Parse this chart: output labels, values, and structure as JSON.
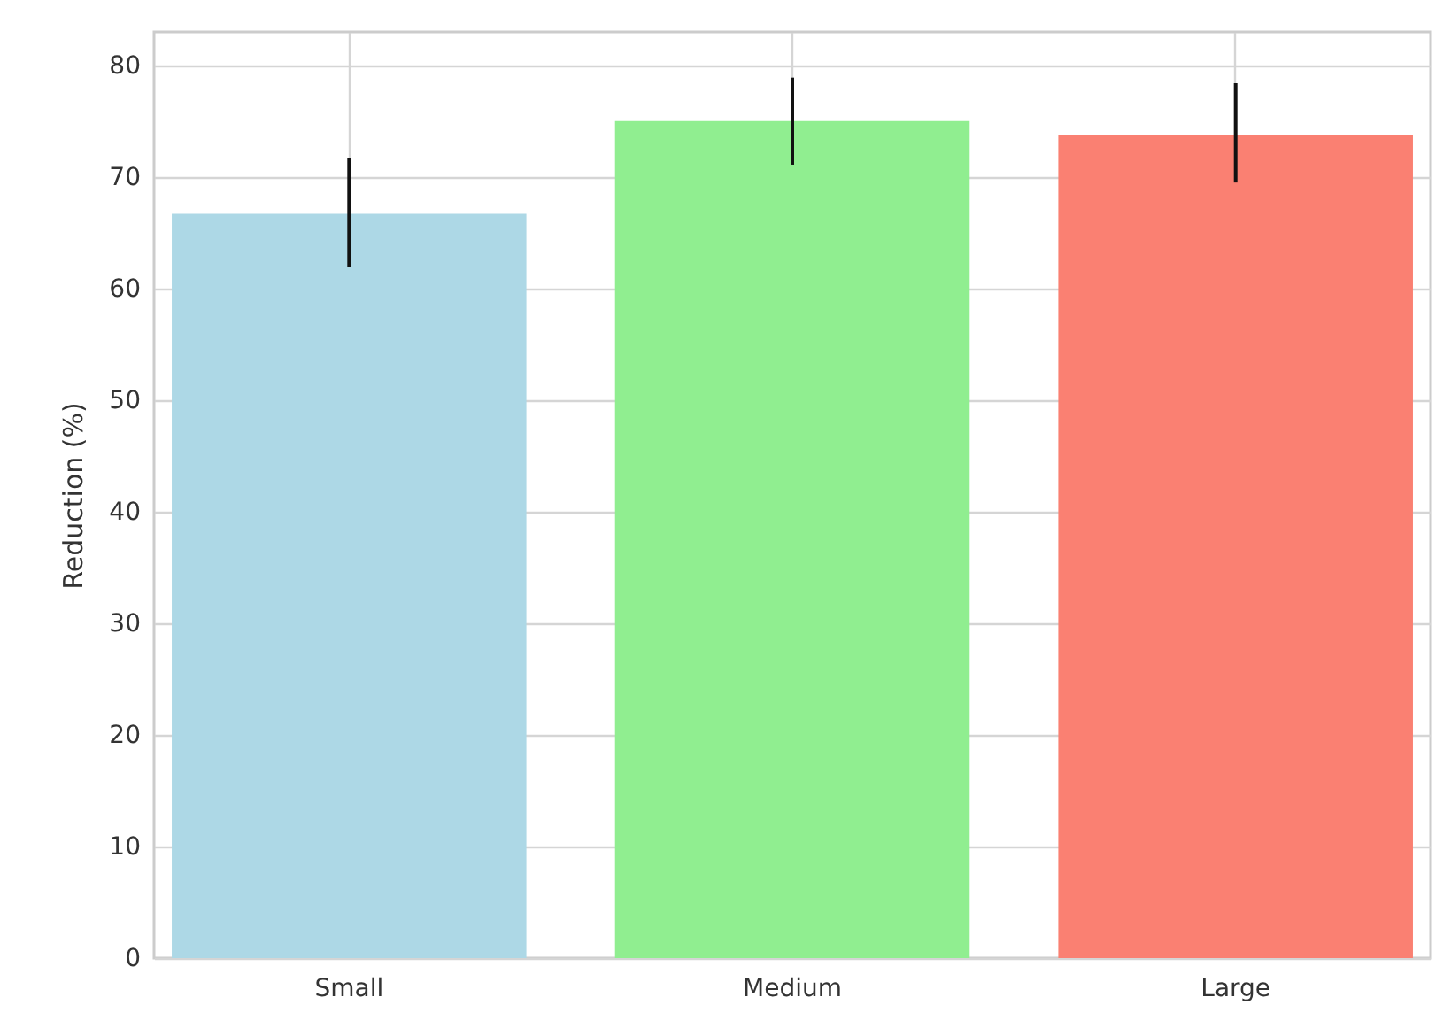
{
  "chart_data": {
    "type": "bar",
    "ylabel": "Reduction (%)",
    "categories": [
      "Small",
      "Medium",
      "Large"
    ],
    "values": [
      66.7,
      75.0,
      73.8
    ],
    "colors": [
      "#add8e6",
      "#90ee90",
      "#fa8072"
    ],
    "errors": [
      [
        61.9,
        71.7
      ],
      [
        71.1,
        78.9
      ],
      [
        69.5,
        78.4
      ]
    ],
    "ylim": [
      0,
      83
    ],
    "yticks": [
      0,
      10,
      20,
      30,
      40,
      50,
      60,
      70,
      80
    ],
    "grid": true
  }
}
